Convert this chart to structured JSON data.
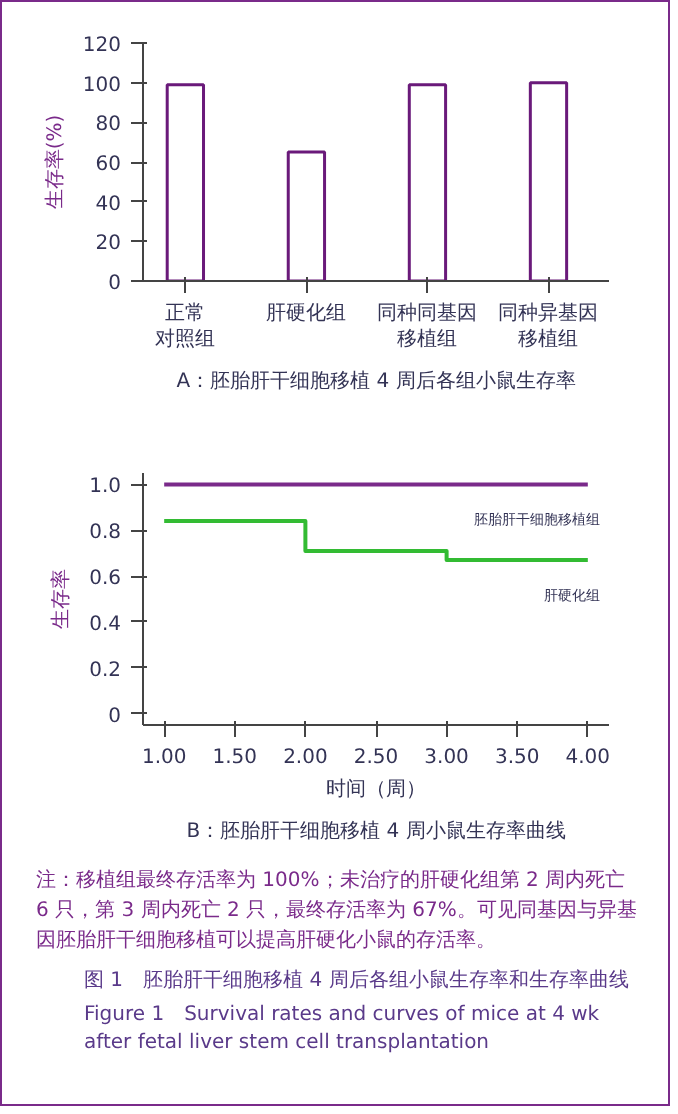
{
  "chart_data": [
    {
      "type": "bar",
      "title": "A：胚胎肝干细胞移植 4 周后各组小鼠生存率",
      "ylabel": "生存率(%)",
      "categories": [
        "正常对照组",
        "肝硬化组",
        "同种同基因移植组",
        "同种异基因移植组"
      ],
      "values": [
        99,
        65,
        99,
        100
      ],
      "color": "#6a1a7a",
      "ylim": [
        0,
        120
      ],
      "yticks": [
        0,
        20,
        40,
        60,
        80,
        100,
        120
      ],
      "grid": false
    },
    {
      "type": "step",
      "title": "B：胚胎肝干细胞移植 4 周小鼠生存率曲线",
      "xlabel": "时间（周）",
      "ylabel": "生存率",
      "series": [
        {
          "name": "胚胎肝干细胞移植组",
          "color": "#7a2a8a",
          "x": [
            1,
            4
          ],
          "values": [
            1.0,
            1.0
          ]
        },
        {
          "name": "肝硬化组",
          "color": "#33bb33",
          "x": [
            1,
            2,
            3,
            4
          ],
          "values": [
            0.84,
            0.71,
            0.67,
            0.67
          ]
        }
      ],
      "xlim": [
        0.85,
        4.15
      ],
      "ylim": [
        -0.05,
        1.05
      ],
      "xticks": [
        {
          "value": 1,
          "label": "1.00"
        },
        {
          "value": 1.5,
          "label": "1.50"
        },
        {
          "value": 2,
          "label": "2.00"
        },
        {
          "value": 2.5,
          "label": "2.50"
        },
        {
          "value": 3,
          "label": "3.00"
        },
        {
          "value": 3.5,
          "label": "3.50"
        },
        {
          "value": 4,
          "label": "4.00"
        }
      ],
      "yticks": [
        0,
        0.2,
        0.4,
        0.6,
        0.8,
        {
          "value": 1,
          "label": "1.0"
        }
      ],
      "grid": false,
      "marker": "none",
      "line_style": "solid",
      "annotations": [
        "注：移植组最终存活率为 100%；未治疗的肝硬化组第 2 周内死亡 6 只，第 3 周内死亡 2 只，最终存活率为 67%。可见同基因与异基因胚胎肝干细胞移植可以提高肝硬化小鼠的存活率。",
        "图 1　胚胎肝干细胞移植 4 周后各组小鼠生存率和生存率曲线",
        "Figure 1　Survival rates and curves of mice at 4 wk after fetal liver stem cell transplantation"
      ]
    }
  ]
}
